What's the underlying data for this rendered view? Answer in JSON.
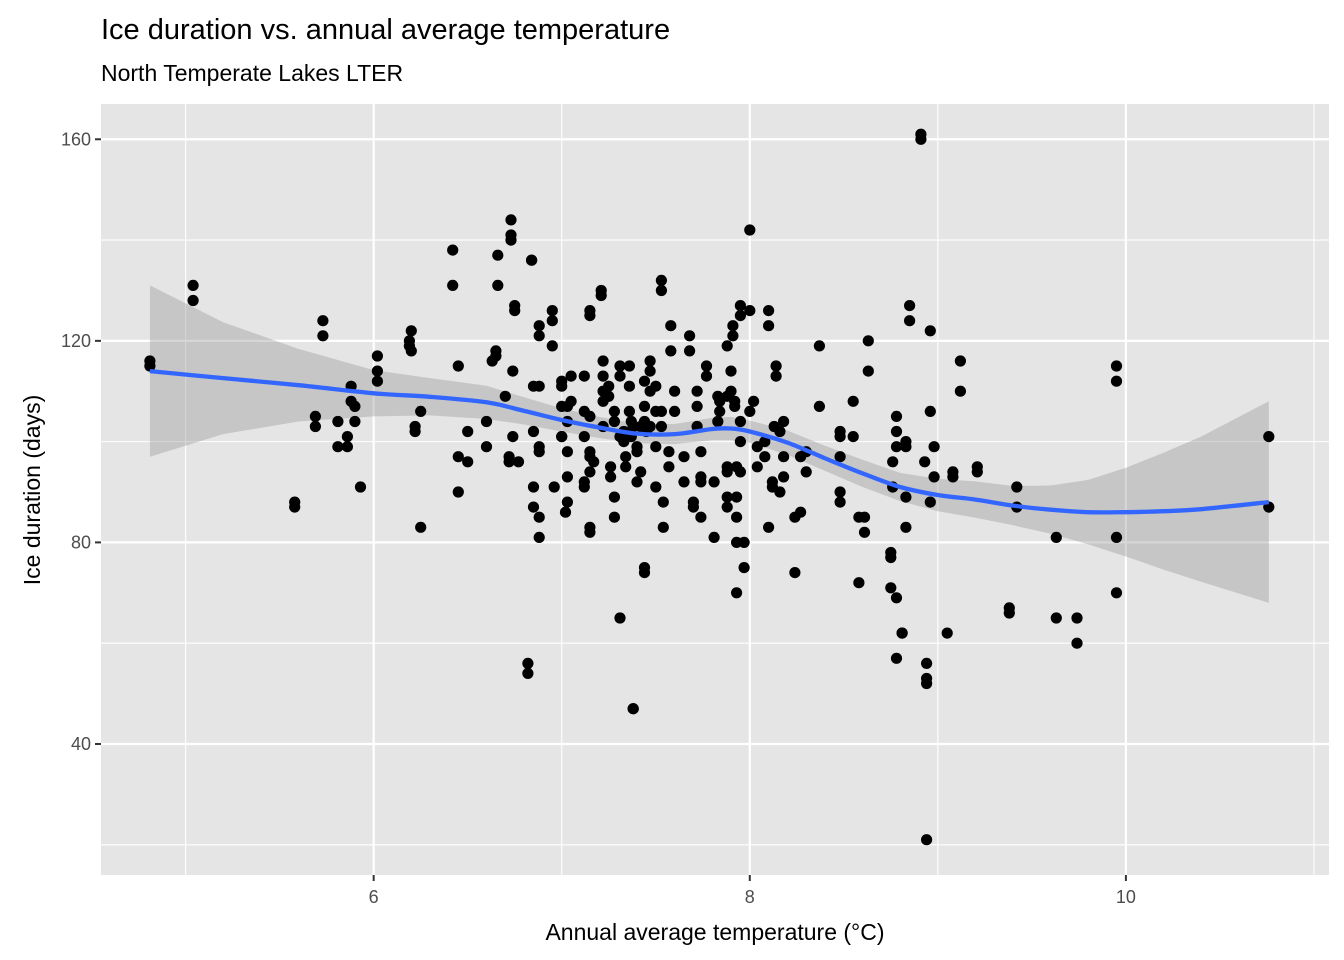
{
  "chart_data": {
    "type": "scatter",
    "title": "Ice duration vs. annual average temperature",
    "subtitle": "North Temperate Lakes LTER",
    "xlabel": "Annual average temperature (°C)",
    "ylabel": "Ice duration (days)",
    "xlim": [
      4.55,
      11.08
    ],
    "ylim": [
      14,
      167
    ],
    "x_ticks": [
      6,
      8,
      10
    ],
    "x_tick_labels": [
      "6",
      "8",
      "10"
    ],
    "x_minor_ticks": [
      5,
      7,
      9,
      11
    ],
    "y_ticks": [
      40,
      80,
      120,
      160
    ],
    "y_tick_labels": [
      "40",
      "80",
      "120",
      "160"
    ],
    "y_minor_ticks": [
      20,
      60,
      100,
      140
    ],
    "grid": true,
    "legend": "none",
    "colors": {
      "panel_background": "#e5e5e5",
      "grid": "#ffffff",
      "points": "#000000",
      "smooth_line": "#3366ff",
      "confidence_band": "#999999"
    },
    "points": [
      [
        4.81,
        116
      ],
      [
        4.81,
        115
      ],
      [
        5.04,
        131
      ],
      [
        5.04,
        128
      ],
      [
        5.58,
        88
      ],
      [
        5.58,
        87
      ],
      [
        5.73,
        124
      ],
      [
        5.73,
        121
      ],
      [
        5.69,
        105
      ],
      [
        5.69,
        103
      ],
      [
        5.81,
        104
      ],
      [
        5.81,
        99
      ],
      [
        5.86,
        99
      ],
      [
        5.86,
        101
      ],
      [
        5.88,
        111
      ],
      [
        5.88,
        108
      ],
      [
        5.9,
        107
      ],
      [
        5.9,
        104
      ],
      [
        5.93,
        91
      ],
      [
        6.02,
        117
      ],
      [
        6.02,
        114
      ],
      [
        6.02,
        112
      ],
      [
        6.19,
        120
      ],
      [
        6.19,
        119
      ],
      [
        6.2,
        118
      ],
      [
        6.2,
        122
      ],
      [
        6.22,
        103
      ],
      [
        6.22,
        102
      ],
      [
        6.25,
        106
      ],
      [
        6.25,
        83
      ],
      [
        6.42,
        138
      ],
      [
        6.42,
        131
      ],
      [
        6.45,
        115
      ],
      [
        6.45,
        97
      ],
      [
        6.45,
        90
      ],
      [
        6.5,
        102
      ],
      [
        6.5,
        96
      ],
      [
        6.6,
        104
      ],
      [
        6.6,
        99
      ],
      [
        6.63,
        116
      ],
      [
        6.65,
        117
      ],
      [
        6.65,
        118
      ],
      [
        6.66,
        137
      ],
      [
        6.66,
        131
      ],
      [
        6.7,
        109
      ],
      [
        6.72,
        97
      ],
      [
        6.72,
        96
      ],
      [
        6.73,
        144
      ],
      [
        6.73,
        141
      ],
      [
        6.73,
        140
      ],
      [
        6.75,
        127
      ],
      [
        6.75,
        126
      ],
      [
        6.74,
        114
      ],
      [
        6.74,
        101
      ],
      [
        6.77,
        96
      ],
      [
        6.82,
        56
      ],
      [
        6.82,
        54
      ],
      [
        6.84,
        136
      ],
      [
        6.84,
        136
      ],
      [
        6.85,
        111
      ],
      [
        6.85,
        102
      ],
      [
        6.85,
        91
      ],
      [
        6.85,
        87
      ],
      [
        6.88,
        123
      ],
      [
        6.88,
        121
      ],
      [
        6.88,
        111
      ],
      [
        6.88,
        99
      ],
      [
        6.88,
        98
      ],
      [
        6.88,
        85
      ],
      [
        6.88,
        81
      ],
      [
        6.95,
        126
      ],
      [
        6.95,
        124
      ],
      [
        6.95,
        119
      ],
      [
        6.96,
        91
      ],
      [
        7.0,
        112
      ],
      [
        7.0,
        111
      ],
      [
        7.0,
        107
      ],
      [
        7.0,
        101
      ],
      [
        7.0,
        101
      ],
      [
        7.03,
        107
      ],
      [
        7.03,
        104
      ],
      [
        7.03,
        98
      ],
      [
        7.03,
        93
      ],
      [
        7.03,
        88
      ],
      [
        7.02,
        86
      ],
      [
        7.05,
        113
      ],
      [
        7.05,
        108
      ],
      [
        7.12,
        113
      ],
      [
        7.12,
        106
      ],
      [
        7.12,
        101
      ],
      [
        7.12,
        92
      ],
      [
        7.12,
        91
      ],
      [
        7.15,
        126
      ],
      [
        7.15,
        125
      ],
      [
        7.15,
        105
      ],
      [
        7.15,
        98
      ],
      [
        7.15,
        97
      ],
      [
        7.15,
        94
      ],
      [
        7.15,
        83
      ],
      [
        7.15,
        82
      ],
      [
        7.17,
        96
      ],
      [
        7.21,
        130
      ],
      [
        7.21,
        129
      ],
      [
        7.22,
        116
      ],
      [
        7.22,
        113
      ],
      [
        7.22,
        110
      ],
      [
        7.22,
        108
      ],
      [
        7.22,
        103
      ],
      [
        7.25,
        111
      ],
      [
        7.25,
        109
      ],
      [
        7.26,
        95
      ],
      [
        7.26,
        93
      ],
      [
        7.28,
        106
      ],
      [
        7.28,
        104
      ],
      [
        7.28,
        89
      ],
      [
        7.28,
        85
      ],
      [
        7.31,
        115
      ],
      [
        7.31,
        113
      ],
      [
        7.31,
        101
      ],
      [
        7.31,
        65
      ],
      [
        7.33,
        100
      ],
      [
        7.33,
        102
      ],
      [
        7.34,
        97
      ],
      [
        7.34,
        95
      ],
      [
        7.36,
        115
      ],
      [
        7.36,
        111
      ],
      [
        7.36,
        106
      ],
      [
        7.37,
        104
      ],
      [
        7.37,
        101
      ],
      [
        7.38,
        103
      ],
      [
        7.38,
        103
      ],
      [
        7.38,
        47
      ],
      [
        7.38,
        47
      ],
      [
        7.4,
        99
      ],
      [
        7.4,
        98
      ],
      [
        7.4,
        92
      ],
      [
        7.42,
        103
      ],
      [
        7.42,
        94
      ],
      [
        7.44,
        112
      ],
      [
        7.44,
        107
      ],
      [
        7.44,
        104
      ],
      [
        7.44,
        75
      ],
      [
        7.44,
        74
      ],
      [
        7.45,
        102
      ],
      [
        7.47,
        116
      ],
      [
        7.47,
        114
      ],
      [
        7.47,
        110
      ],
      [
        7.47,
        103
      ],
      [
        7.5,
        111
      ],
      [
        7.5,
        106
      ],
      [
        7.5,
        99
      ],
      [
        7.5,
        91
      ],
      [
        7.53,
        132
      ],
      [
        7.53,
        130
      ],
      [
        7.53,
        106
      ],
      [
        7.53,
        103
      ],
      [
        7.54,
        88
      ],
      [
        7.54,
        83
      ],
      [
        7.57,
        98
      ],
      [
        7.57,
        95
      ],
      [
        7.58,
        123
      ],
      [
        7.58,
        118
      ],
      [
        7.6,
        110
      ],
      [
        7.6,
        106
      ],
      [
        7.65,
        97
      ],
      [
        7.65,
        92
      ],
      [
        7.68,
        121
      ],
      [
        7.68,
        118
      ],
      [
        7.7,
        88
      ],
      [
        7.7,
        87
      ],
      [
        7.72,
        110
      ],
      [
        7.72,
        107
      ],
      [
        7.72,
        103
      ],
      [
        7.74,
        98
      ],
      [
        7.74,
        93
      ],
      [
        7.74,
        92
      ],
      [
        7.74,
        85
      ],
      [
        7.77,
        115
      ],
      [
        7.77,
        113
      ],
      [
        7.81,
        92
      ],
      [
        7.81,
        81
      ],
      [
        7.83,
        109
      ],
      [
        7.83,
        104
      ],
      [
        7.84,
        108
      ],
      [
        7.84,
        106
      ],
      [
        7.88,
        119
      ],
      [
        7.88,
        109
      ],
      [
        7.88,
        95
      ],
      [
        7.88,
        94
      ],
      [
        7.88,
        89
      ],
      [
        7.88,
        87
      ],
      [
        7.9,
        114
      ],
      [
        7.9,
        110
      ],
      [
        7.91,
        123
      ],
      [
        7.91,
        121
      ],
      [
        7.92,
        108
      ],
      [
        7.92,
        107
      ],
      [
        7.93,
        95
      ],
      [
        7.93,
        89
      ],
      [
        7.93,
        85
      ],
      [
        7.93,
        80
      ],
      [
        7.93,
        70
      ],
      [
        7.95,
        127
      ],
      [
        7.95,
        125
      ],
      [
        7.95,
        104
      ],
      [
        7.95,
        100
      ],
      [
        7.95,
        94
      ],
      [
        7.97,
        80
      ],
      [
        7.97,
        75
      ],
      [
        8.0,
        142
      ],
      [
        8.0,
        126
      ],
      [
        8.0,
        106
      ],
      [
        8.02,
        108
      ],
      [
        8.04,
        99
      ],
      [
        8.04,
        95
      ],
      [
        8.08,
        100
      ],
      [
        8.08,
        97
      ],
      [
        8.1,
        126
      ],
      [
        8.1,
        123
      ],
      [
        8.1,
        83
      ],
      [
        8.12,
        92
      ],
      [
        8.12,
        91
      ],
      [
        8.14,
        115
      ],
      [
        8.14,
        113
      ],
      [
        8.13,
        103
      ],
      [
        8.16,
        102
      ],
      [
        8.16,
        90
      ],
      [
        8.18,
        104
      ],
      [
        8.18,
        97
      ],
      [
        8.18,
        93
      ],
      [
        8.24,
        85
      ],
      [
        8.24,
        74
      ],
      [
        8.27,
        97
      ],
      [
        8.27,
        86
      ],
      [
        8.3,
        98
      ],
      [
        8.3,
        94
      ],
      [
        8.37,
        119
      ],
      [
        8.37,
        107
      ],
      [
        8.48,
        102
      ],
      [
        8.48,
        101
      ],
      [
        8.48,
        97
      ],
      [
        8.48,
        90
      ],
      [
        8.48,
        88
      ],
      [
        8.55,
        108
      ],
      [
        8.55,
        101
      ],
      [
        8.58,
        85
      ],
      [
        8.58,
        72
      ],
      [
        8.61,
        85
      ],
      [
        8.61,
        82
      ],
      [
        8.63,
        120
      ],
      [
        8.63,
        114
      ],
      [
        8.75,
        78
      ],
      [
        8.75,
        77
      ],
      [
        8.75,
        71
      ],
      [
        8.76,
        96
      ],
      [
        8.76,
        91
      ],
      [
        8.78,
        105
      ],
      [
        8.78,
        102
      ],
      [
        8.78,
        99
      ],
      [
        8.78,
        69
      ],
      [
        8.78,
        57
      ],
      [
        8.81,
        62
      ],
      [
        8.81,
        62
      ],
      [
        8.83,
        100
      ],
      [
        8.83,
        99
      ],
      [
        8.83,
        89
      ],
      [
        8.83,
        83
      ],
      [
        8.85,
        127
      ],
      [
        8.85,
        124
      ],
      [
        8.91,
        161
      ],
      [
        8.91,
        160
      ],
      [
        8.93,
        96
      ],
      [
        8.94,
        56
      ],
      [
        8.94,
        53
      ],
      [
        8.94,
        52
      ],
      [
        8.94,
        21
      ],
      [
        8.96,
        122
      ],
      [
        8.96,
        106
      ],
      [
        8.96,
        88
      ],
      [
        8.98,
        99
      ],
      [
        8.98,
        93
      ],
      [
        9.05,
        62
      ],
      [
        9.08,
        94
      ],
      [
        9.08,
        93
      ],
      [
        9.12,
        116
      ],
      [
        9.12,
        110
      ],
      [
        9.21,
        95
      ],
      [
        9.21,
        94
      ],
      [
        9.38,
        67
      ],
      [
        9.38,
        66
      ],
      [
        9.42,
        91
      ],
      [
        9.42,
        87
      ],
      [
        9.63,
        81
      ],
      [
        9.63,
        65
      ],
      [
        9.74,
        65
      ],
      [
        9.74,
        60
      ],
      [
        9.95,
        115
      ],
      [
        9.95,
        112
      ],
      [
        9.95,
        81
      ],
      [
        9.95,
        70
      ],
      [
        10.76,
        101
      ],
      [
        10.76,
        87
      ]
    ],
    "smooth": {
      "method": "loess",
      "x": [
        4.81,
        5.2,
        5.6,
        6.0,
        6.3,
        6.6,
        6.8,
        7.0,
        7.2,
        7.4,
        7.6,
        7.8,
        7.9,
        8.0,
        8.2,
        8.4,
        8.6,
        8.8,
        9.0,
        9.2,
        9.4,
        9.6,
        9.8,
        10.0,
        10.2,
        10.4,
        10.76
      ],
      "y": [
        114.0,
        112.6,
        111.2,
        109.6,
        108.9,
        107.8,
        106.1,
        104.3,
        102.8,
        101.6,
        101.5,
        102.5,
        102.6,
        102.0,
        99.8,
        96.7,
        93.7,
        91.0,
        89.4,
        88.5,
        87.3,
        86.5,
        86.0,
        86.0,
        86.2,
        86.6,
        88.0
      ],
      "lower": [
        97.0,
        101.5,
        104.0,
        105.0,
        105.2,
        104.5,
        103.4,
        102.0,
        100.7,
        99.7,
        99.5,
        100.3,
        100.3,
        99.8,
        97.4,
        94.2,
        91.0,
        88.2,
        86.2,
        84.9,
        83.4,
        81.7,
        79.6,
        77.2,
        74.6,
        72.2,
        68.0
      ],
      "upper": [
        131.0,
        123.7,
        118.4,
        114.2,
        112.6,
        111.1,
        108.8,
        106.6,
        104.9,
        103.5,
        103.5,
        104.7,
        104.9,
        104.2,
        102.2,
        99.2,
        96.4,
        93.8,
        92.6,
        92.1,
        91.2,
        91.3,
        92.4,
        94.8,
        97.8,
        101.0,
        108.0
      ]
    }
  }
}
